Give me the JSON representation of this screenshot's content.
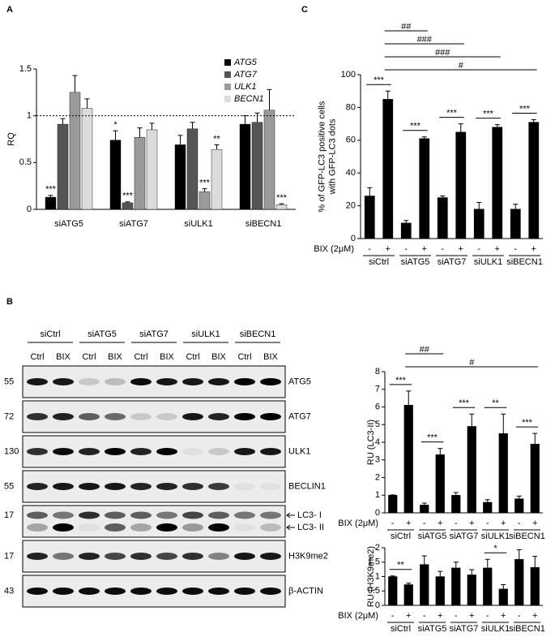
{
  "chart_data": [
    {
      "type": "bar",
      "panel": "A",
      "ylabel": [
        "RQ"
      ],
      "categories": [
        "siATG5",
        "siATG7",
        "siULK1",
        "siBECN1"
      ],
      "series": [
        {
          "name": "ATG5",
          "color": "#000000",
          "values": [
            0.13,
            0.74,
            0.69,
            0.91
          ],
          "errors": [
            0.02,
            0.1,
            0.1,
            0.09
          ]
        },
        {
          "name": "ATG7",
          "color": "#555555",
          "values": [
            0.91,
            0.07,
            0.86,
            0.93
          ],
          "errors": [
            0.06,
            0.01,
            0.07,
            0.1
          ]
        },
        {
          "name": "ULK1",
          "color": "#9a9a9a",
          "values": [
            1.25,
            0.77,
            0.19,
            1.06
          ],
          "errors": [
            0.18,
            0.1,
            0.03,
            0.22
          ]
        },
        {
          "name": "BECN1",
          "color": "#dcdcdc",
          "values": [
            1.08,
            0.85,
            0.64,
            0.05
          ],
          "errors": [
            0.1,
            0.07,
            0.05,
            0.01
          ]
        }
      ],
      "ylim": [
        0,
        1.5
      ],
      "yticks": [
        0,
        0.5,
        1,
        1.5
      ],
      "hline": 1,
      "legend": "upper right",
      "annotations": [
        {
          "text": "***",
          "series": 0,
          "category": 0
        },
        {
          "text": "*",
          "series": 0,
          "category": 1
        },
        {
          "text": "***",
          "series": 1,
          "category": 1
        },
        {
          "text": "***",
          "series": 2,
          "category": 2
        },
        {
          "text": "**",
          "series": 3,
          "category": 2
        },
        {
          "text": "***",
          "series": 3,
          "category": 3
        }
      ]
    },
    {
      "type": "bar",
      "panel": "C",
      "ylabel": [
        "% of GFP-LC3 positive cells",
        "with GFP-LC3 dots"
      ],
      "categories": [
        "-",
        "+",
        "-",
        "+",
        "-",
        "+",
        "-",
        "+",
        "-",
        "+"
      ],
      "groups": [
        "siCtrl",
        "siATG5",
        "siATG7",
        "siULK1",
        "siBECN1"
      ],
      "x_row_label": "BIX (2μM)",
      "values": [
        26,
        85,
        9.5,
        61,
        25,
        65,
        18,
        68,
        18,
        71
      ],
      "errors": [
        5,
        5,
        1.5,
        1,
        1,
        5,
        4,
        1.5,
        3,
        1.5
      ],
      "color": "#000000",
      "ylim": [
        0,
        100
      ],
      "yticks": [
        0,
        20,
        40,
        60,
        80,
        100
      ],
      "annotations": [
        {
          "text": "***",
          "from": 0,
          "to": 1
        },
        {
          "text": "***",
          "from": 2,
          "to": 3
        },
        {
          "text": "***",
          "from": 4,
          "to": 5
        },
        {
          "text": "***",
          "from": 6,
          "to": 7
        },
        {
          "text": "***",
          "from": 8,
          "to": 9
        },
        {
          "text": "##",
          "from": 1,
          "to": 3
        },
        {
          "text": "###",
          "from": 1,
          "to": 5
        },
        {
          "text": "###",
          "from": 1,
          "to": 7
        },
        {
          "text": "#",
          "from": 1,
          "to": 9
        }
      ]
    },
    {
      "type": "bar",
      "ylabel": [
        "RU (LC3-II)"
      ],
      "categories": [
        "-",
        "+",
        "-",
        "+",
        "-",
        "+",
        "-",
        "+",
        "-",
        "+"
      ],
      "groups": [
        "siCtrl",
        "siATG5",
        "siATG7",
        "siULK1",
        "siBECN1"
      ],
      "x_row_label": "BIX (2μM)",
      "values": [
        1,
        6.1,
        0.45,
        3.3,
        1.0,
        4.9,
        0.6,
        4.5,
        0.8,
        3.9
      ],
      "errors": [
        0.02,
        0.8,
        0.1,
        0.35,
        0.15,
        0.7,
        0.15,
        1.1,
        0.15,
        0.6
      ],
      "color": "#000000",
      "ylim": [
        0,
        8
      ],
      "yticks": [
        0,
        1,
        2,
        3,
        4,
        5,
        6,
        7,
        8
      ],
      "annotations": [
        {
          "text": "***",
          "from": 0,
          "to": 1
        },
        {
          "text": "***",
          "from": 2,
          "to": 3
        },
        {
          "text": "***",
          "from": 4,
          "to": 5
        },
        {
          "text": "**",
          "from": 6,
          "to": 7
        },
        {
          "text": "***",
          "from": 8,
          "to": 9
        },
        {
          "text": "##",
          "from": 1,
          "to": 3
        },
        {
          "text": "#",
          "from": 1,
          "to": 9
        }
      ]
    },
    {
      "type": "bar",
      "ylabel": [
        "RU (H3K9me2)"
      ],
      "categories": [
        "-",
        "+",
        "-",
        "+",
        "-",
        "+",
        "-",
        "+",
        "-",
        "+"
      ],
      "groups": [
        "siCtrl",
        "siATG5",
        "siATG7",
        "siULK1",
        "siBECN1"
      ],
      "x_row_label": "BIX (2μM)",
      "values": [
        1,
        0.72,
        1.42,
        1.0,
        1.3,
        1.06,
        1.3,
        0.57,
        1.6,
        1.32
      ],
      "errors": [
        0.02,
        0.05,
        0.3,
        0.18,
        0.2,
        0.18,
        0.3,
        0.15,
        0.33,
        0.38
      ],
      "color": "#000000",
      "ylim": [
        0,
        2
      ],
      "yticks": [
        0,
        0.5,
        1,
        1.5,
        2
      ],
      "annotations": [
        {
          "text": "**",
          "from": 0,
          "to": 1
        },
        {
          "text": "*",
          "from": 6,
          "to": 7
        }
      ]
    }
  ],
  "blot": {
    "panel": "B",
    "groups": [
      "siCtrl",
      "siATG5",
      "siATG7",
      "siULK1",
      "siBECN1"
    ],
    "lanes": [
      "Ctrl",
      "BIX",
      "Ctrl",
      "BIX",
      "Ctrl",
      "BIX",
      "Ctrl",
      "BIX",
      "Ctrl",
      "BIX"
    ],
    "rows": [
      {
        "mw": "55",
        "labels": [
          "ATG5"
        ]
      },
      {
        "mw": "72",
        "labels": [
          "ATG7"
        ]
      },
      {
        "mw": "130",
        "labels": [
          "ULK1"
        ]
      },
      {
        "mw": "55",
        "labels": [
          "BECLIN1"
        ]
      },
      {
        "mw": "17",
        "labels": [
          "LC3- I",
          "LC3- II"
        ]
      },
      {
        "mw": "17",
        "labels": [
          "H3K9me2"
        ]
      },
      {
        "mw": "43",
        "labels": [
          "β-ACTIN"
        ]
      }
    ]
  }
}
